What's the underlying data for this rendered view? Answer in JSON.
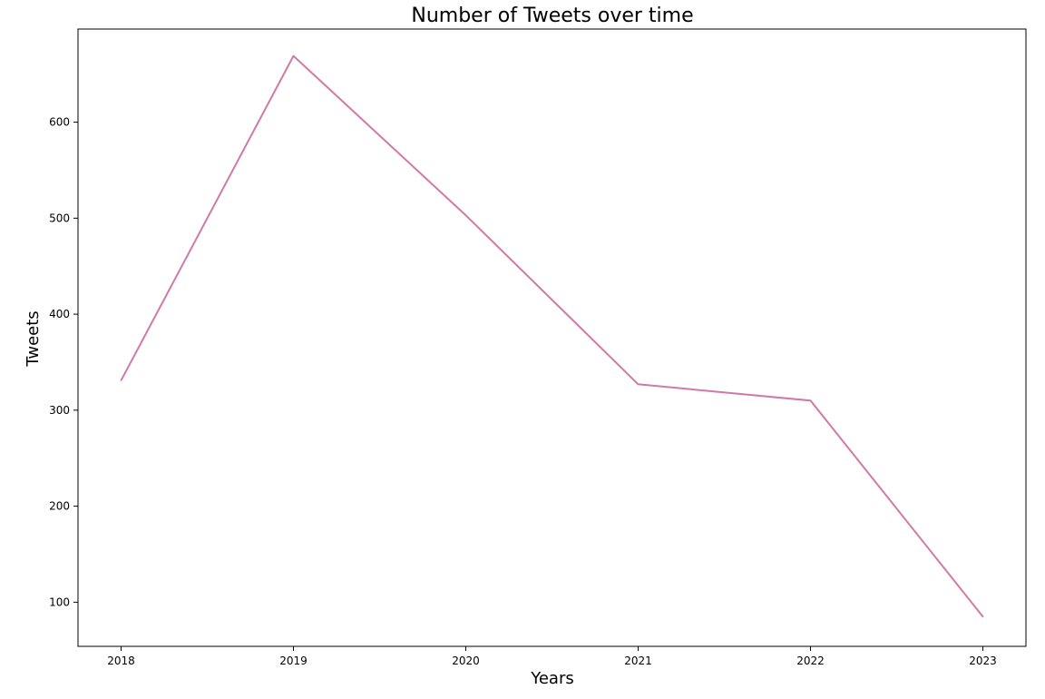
{
  "chart_data": {
    "type": "line",
    "title": "Number of Tweets over time",
    "xlabel": "Years",
    "ylabel": "Tweets",
    "x": [
      2018,
      2019,
      2020,
      2021,
      2022,
      2023
    ],
    "x_tick_labels": [
      "2018",
      "2019",
      "2020",
      "2021",
      "2022",
      "2023"
    ],
    "series": [
      {
        "values": [
          331,
          669,
          503,
          327,
          310,
          85
        ]
      }
    ],
    "y_ticks": [
      100,
      200,
      300,
      400,
      500,
      600
    ],
    "y_tick_labels": [
      "100",
      "200",
      "300",
      "400",
      "500",
      "600"
    ],
    "xlim": [
      2017.75,
      2023.25
    ],
    "ylim": [
      54,
      697
    ],
    "grid": false,
    "line_color": "#d179a8"
  }
}
